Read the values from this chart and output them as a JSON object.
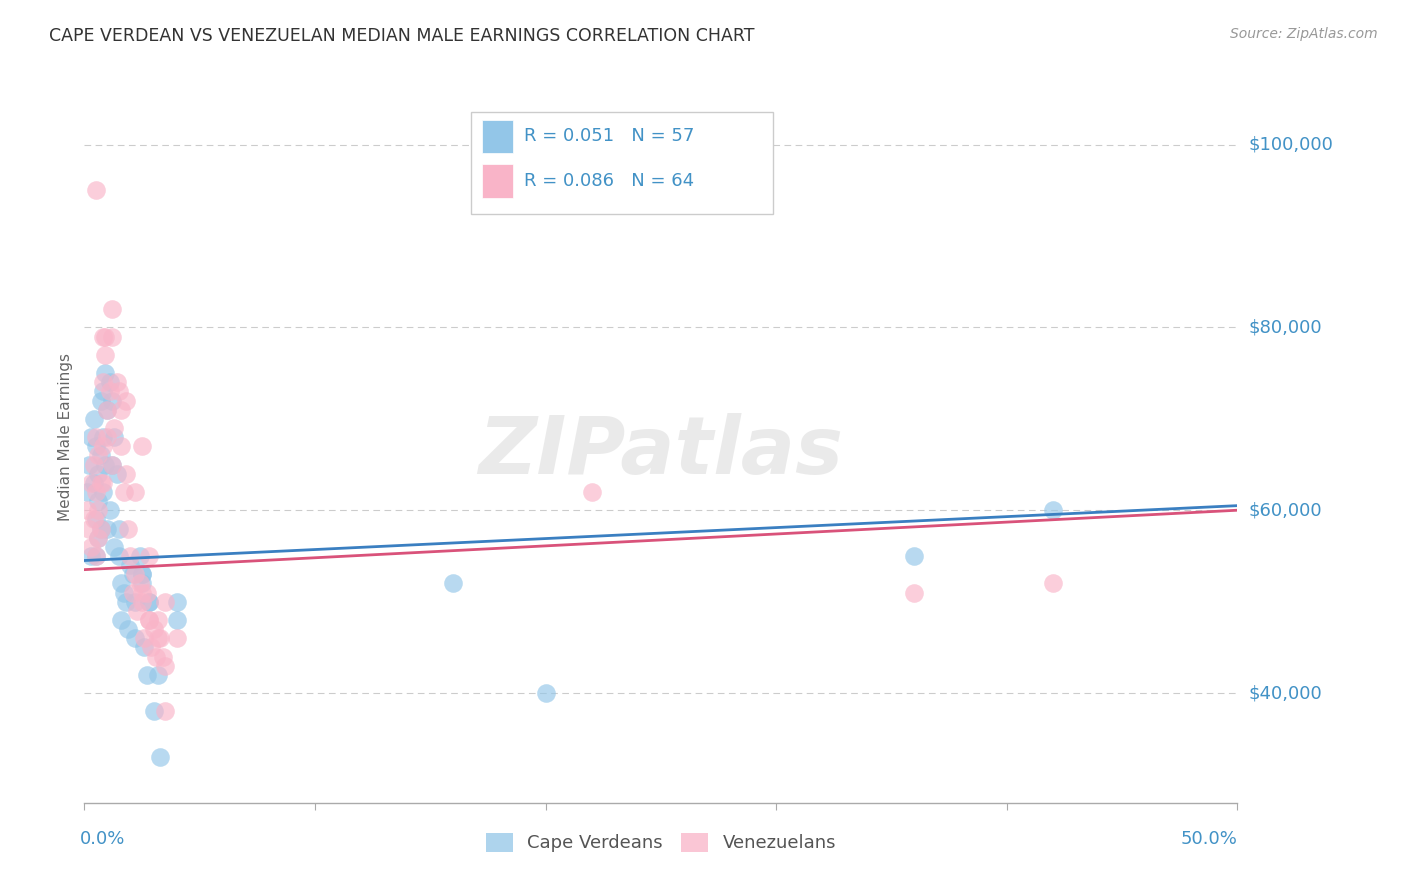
{
  "title": "CAPE VERDEAN VS VENEZUELAN MEDIAN MALE EARNINGS CORRELATION CHART",
  "source": "Source: ZipAtlas.com",
  "ylabel": "Median Male Earnings",
  "yticks": [
    40000,
    60000,
    80000,
    100000
  ],
  "ytick_labels": [
    "$40,000",
    "$60,000",
    "$80,000",
    "$100,000"
  ],
  "legend_label1": "Cape Verdeans",
  "legend_label2": "Venezuelans",
  "R1": 0.051,
  "N1": 57,
  "R2": 0.086,
  "N2": 64,
  "color1": "#93c6e8",
  "color2": "#f9b4c8",
  "trend_color1": "#3a7fc1",
  "trend_color2": "#d9527a",
  "xlim": [
    0.0,
    0.5
  ],
  "ylim": [
    28000,
    108000
  ],
  "watermark": "ZIPatlas",
  "background_color": "#ffffff",
  "grid_color": "#cccccc",
  "title_color": "#333333",
  "source_color": "#999999",
  "axis_label_color": "#4292c6",
  "cape_verdean_x": [
    0.001,
    0.002,
    0.003,
    0.003,
    0.004,
    0.004,
    0.005,
    0.005,
    0.005,
    0.006,
    0.006,
    0.006,
    0.007,
    0.007,
    0.007,
    0.008,
    0.008,
    0.008,
    0.009,
    0.009,
    0.01,
    0.01,
    0.011,
    0.011,
    0.012,
    0.012,
    0.013,
    0.013,
    0.014,
    0.015,
    0.015,
    0.016,
    0.016,
    0.017,
    0.018,
    0.019,
    0.02,
    0.021,
    0.022,
    0.022,
    0.024,
    0.025,
    0.026,
    0.027,
    0.028,
    0.03,
    0.032,
    0.033,
    0.025,
    0.028,
    0.04,
    0.04,
    0.025,
    0.16,
    0.2,
    0.36,
    0.42
  ],
  "cape_verdean_y": [
    62000,
    65000,
    68000,
    55000,
    70000,
    63000,
    67000,
    59000,
    55000,
    64000,
    61000,
    57000,
    72000,
    66000,
    58000,
    73000,
    68000,
    62000,
    75000,
    65000,
    71000,
    58000,
    74000,
    60000,
    72000,
    65000,
    68000,
    56000,
    64000,
    55000,
    58000,
    52000,
    48000,
    51000,
    50000,
    47000,
    54000,
    53000,
    50000,
    46000,
    55000,
    52000,
    45000,
    42000,
    50000,
    38000,
    42000,
    33000,
    53000,
    50000,
    48000,
    50000,
    53000,
    52000,
    40000,
    55000,
    60000
  ],
  "venezuelan_x": [
    0.001,
    0.002,
    0.003,
    0.003,
    0.004,
    0.004,
    0.005,
    0.005,
    0.005,
    0.006,
    0.006,
    0.006,
    0.007,
    0.007,
    0.008,
    0.008,
    0.008,
    0.009,
    0.009,
    0.01,
    0.01,
    0.011,
    0.012,
    0.012,
    0.013,
    0.014,
    0.015,
    0.016,
    0.016,
    0.017,
    0.018,
    0.019,
    0.02,
    0.021,
    0.022,
    0.023,
    0.024,
    0.025,
    0.026,
    0.027,
    0.028,
    0.029,
    0.03,
    0.031,
    0.032,
    0.033,
    0.034,
    0.035,
    0.025,
    0.018,
    0.012,
    0.008,
    0.022,
    0.028,
    0.035,
    0.04,
    0.035,
    0.025,
    0.028,
    0.032,
    0.22,
    0.36,
    0.42,
    0.005
  ],
  "venezuelan_y": [
    60000,
    58000,
    63000,
    56000,
    65000,
    59000,
    68000,
    62000,
    55000,
    66000,
    60000,
    57000,
    63000,
    58000,
    79000,
    74000,
    67000,
    79000,
    77000,
    71000,
    68000,
    73000,
    82000,
    79000,
    69000,
    74000,
    73000,
    67000,
    71000,
    62000,
    64000,
    58000,
    55000,
    51000,
    53000,
    49000,
    52000,
    50000,
    46000,
    51000,
    48000,
    45000,
    47000,
    44000,
    48000,
    46000,
    44000,
    43000,
    67000,
    72000,
    65000,
    63000,
    62000,
    55000,
    50000,
    46000,
    38000,
    51000,
    48000,
    46000,
    62000,
    51000,
    52000,
    95000
  ]
}
